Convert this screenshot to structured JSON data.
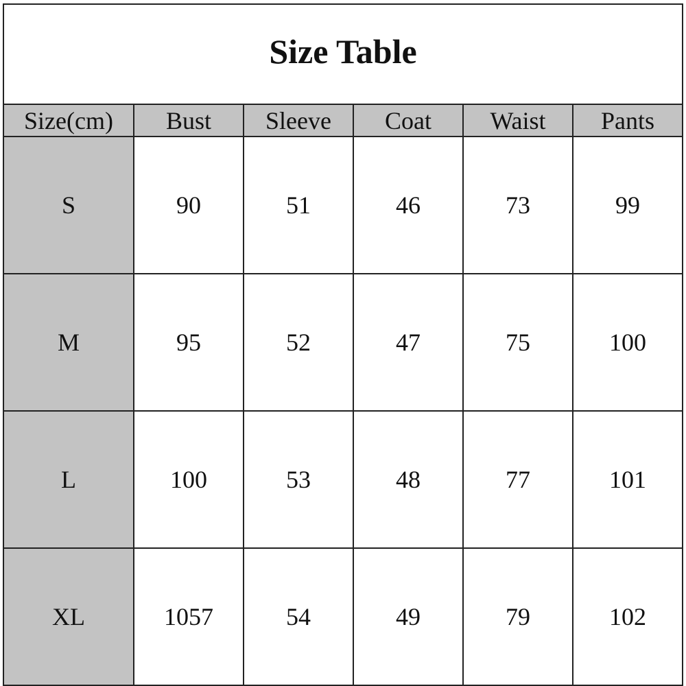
{
  "title": "Size Table",
  "headers": [
    "Size(cm)",
    "Bust",
    "Sleeve",
    "Coat",
    "Waist",
    "Pants"
  ],
  "rows": [
    [
      "S",
      "90",
      "51",
      "46",
      "73",
      "99"
    ],
    [
      "M",
      "95",
      "52",
      "47",
      "75",
      "100"
    ],
    [
      "L",
      "100",
      "53",
      "48",
      "77",
      "101"
    ],
    [
      "XL",
      "1057",
      "54",
      "49",
      "79",
      "102"
    ]
  ],
  "colors": {
    "header_bg": "#c3c3c3",
    "border": "#222222"
  }
}
